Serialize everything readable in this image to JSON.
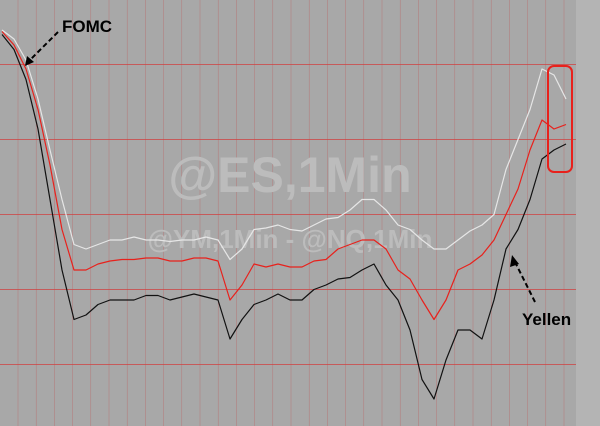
{
  "chart_data": {
    "type": "line",
    "watermark": "@ES,1Min",
    "watermark_sub": "@YM,1Min - @NQ,1Min",
    "annotations": [
      "FOMC",
      "Yellen"
    ],
    "categories": [
      null,
      null,
      null,
      null,
      null,
      null,
      null,
      null,
      null,
      null,
      null,
      null,
      null,
      null,
      null,
      null,
      null,
      null,
      null,
      null,
      null,
      null,
      null,
      null,
      null,
      null,
      null,
      null,
      null,
      null,
      null,
      null,
      null,
      null,
      null,
      null,
      null,
      null,
      null,
      null,
      null,
      null,
      null,
      null,
      null,
      null,
      null,
      null
    ],
    "series": [
      {
        "color": "#e6e6e6",
        "values": [
          0.73,
          0.67,
          0.53,
          0.27,
          -0.07,
          -0.4,
          -0.7,
          -0.73,
          -0.7,
          -0.67,
          -0.67,
          -0.65,
          -0.67,
          -0.67,
          -0.68,
          -0.67,
          -0.67,
          -0.65,
          -0.67,
          -0.8,
          -0.73,
          -0.6,
          -0.59,
          -0.57,
          -0.6,
          -0.61,
          -0.57,
          -0.53,
          -0.52,
          -0.47,
          -0.4,
          -0.4,
          -0.47,
          -0.57,
          -0.6,
          -0.67,
          -0.73,
          -0.73,
          -0.67,
          -0.61,
          -0.57,
          -0.5,
          -0.2,
          0,
          0.2,
          0.47,
          0.43,
          0.27
        ]
      },
      {
        "color": "#e8211c",
        "values": [
          0.72,
          0.63,
          0.47,
          0.2,
          -0.17,
          -0.6,
          -0.87,
          -0.87,
          -0.83,
          -0.81,
          -0.8,
          -0.8,
          -0.79,
          -0.79,
          -0.81,
          -0.81,
          -0.79,
          -0.79,
          -0.81,
          -1.07,
          -0.97,
          -0.83,
          -0.85,
          -0.83,
          -0.85,
          -0.85,
          -0.81,
          -0.8,
          -0.73,
          -0.7,
          -0.67,
          -0.67,
          -0.73,
          -0.87,
          -0.93,
          -1.07,
          -1.2,
          -1.07,
          -0.87,
          -0.83,
          -0.77,
          -0.67,
          -0.5,
          -0.33,
          -0.07,
          0.13,
          0.07,
          0.1
        ]
      },
      {
        "color": "#111111",
        "values": [
          0.7,
          0.6,
          0.4,
          0.07,
          -0.4,
          -0.87,
          -1.2,
          -1.17,
          -1.1,
          -1.07,
          -1.07,
          -1.07,
          -1.04,
          -1.04,
          -1.07,
          -1.05,
          -1.03,
          -1.05,
          -1.07,
          -1.33,
          -1.2,
          -1.1,
          -1.07,
          -1.03,
          -1.07,
          -1.07,
          -1,
          -0.97,
          -0.93,
          -0.92,
          -0.87,
          -0.83,
          -0.97,
          -1.07,
          -1.27,
          -1.6,
          -1.73,
          -1.47,
          -1.27,
          -1.27,
          -1.33,
          -1.07,
          -0.73,
          -0.6,
          -0.4,
          -0.13,
          -0.07,
          -0.03
        ]
      }
    ],
    "ylim": [
      -1.91,
      0.93
    ],
    "yticks": [
      0.5,
      0,
      -0.5,
      -1,
      -1.5
    ],
    "grid": true
  }
}
